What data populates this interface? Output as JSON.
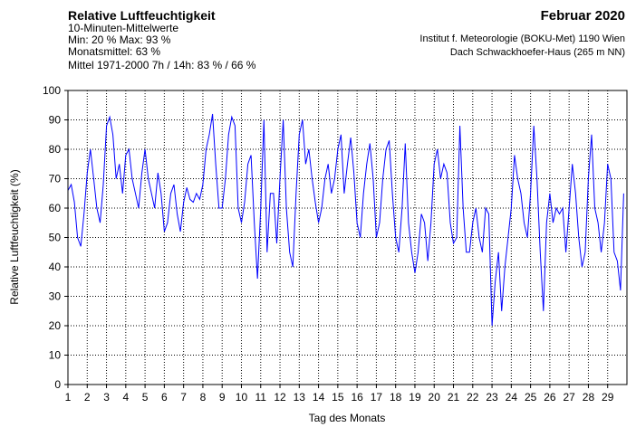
{
  "chart_data": {
    "type": "line",
    "title": "Relative Luftfeuchtigkeit",
    "subtitle": [
      "10-Minuten-Mittelwerte",
      "Min:  20 %   Max:  93 %",
      "Monatsmittel:  63 %",
      "Mittel 1971-2000 7h / 14h:  83 % / 66 %"
    ],
    "title_right": "Februar 2020",
    "subtitle_right": [
      "Institut f. Meteorologie (BOKU-Met) 1190 Wien",
      "Dach Schwackhoefer-Haus (265 m NN)"
    ],
    "xlabel": "Tag des Monats",
    "ylabel": "Relative Luftfeuchtigkeit (%)",
    "xlim": [
      1,
      30
    ],
    "ylim": [
      0,
      100
    ],
    "xticks": [
      1,
      2,
      3,
      4,
      5,
      6,
      7,
      8,
      9,
      10,
      11,
      12,
      13,
      14,
      15,
      16,
      17,
      18,
      19,
      20,
      21,
      22,
      23,
      24,
      25,
      26,
      27,
      28,
      29
    ],
    "yticks": [
      0,
      10,
      20,
      30,
      40,
      50,
      60,
      70,
      80,
      90,
      100
    ],
    "grid": true,
    "x": [
      1,
      1.167,
      1.333,
      1.5,
      1.667,
      1.833,
      2,
      2.167,
      2.333,
      2.5,
      2.667,
      2.833,
      3,
      3.167,
      3.333,
      3.5,
      3.667,
      3.833,
      4,
      4.167,
      4.333,
      4.5,
      4.667,
      4.833,
      5,
      5.167,
      5.333,
      5.5,
      5.667,
      5.833,
      6,
      6.167,
      6.333,
      6.5,
      6.667,
      6.833,
      7,
      7.167,
      7.333,
      7.5,
      7.667,
      7.833,
      8,
      8.167,
      8.333,
      8.5,
      8.667,
      8.833,
      9,
      9.167,
      9.333,
      9.5,
      9.667,
      9.833,
      10,
      10.167,
      10.333,
      10.5,
      10.667,
      10.833,
      11,
      11.167,
      11.333,
      11.5,
      11.667,
      11.833,
      12,
      12.167,
      12.333,
      12.5,
      12.667,
      12.833,
      13,
      13.167,
      13.333,
      13.5,
      13.667,
      13.833,
      14,
      14.167,
      14.333,
      14.5,
      14.667,
      14.833,
      15,
      15.167,
      15.333,
      15.5,
      15.667,
      15.833,
      16,
      16.167,
      16.333,
      16.5,
      16.667,
      16.833,
      17,
      17.167,
      17.333,
      17.5,
      17.667,
      17.833,
      18,
      18.167,
      18.333,
      18.5,
      18.667,
      18.833,
      19,
      19.167,
      19.333,
      19.5,
      19.667,
      19.833,
      20,
      20.167,
      20.333,
      20.5,
      20.667,
      20.833,
      21,
      21.167,
      21.333,
      21.5,
      21.667,
      21.833,
      22,
      22.167,
      22.333,
      22.5,
      22.667,
      22.833,
      23,
      23.167,
      23.333,
      23.5,
      23.667,
      23.833,
      24,
      24.167,
      24.333,
      24.5,
      24.667,
      24.833,
      25,
      25.167,
      25.333,
      25.5,
      25.667,
      25.833,
      26,
      26.167,
      26.333,
      26.5,
      26.667,
      26.833,
      27,
      27.167,
      27.333,
      27.5,
      27.667,
      27.833,
      28,
      28.167,
      28.333,
      28.5,
      28.667,
      28.833,
      29,
      29.167,
      29.333,
      29.5,
      29.667,
      29.833
    ],
    "series": [
      {
        "name": "Relative Luftfeuchtigkeit",
        "color": "#0000ff",
        "values": [
          66,
          68,
          62,
          50,
          47,
          58,
          72,
          80,
          70,
          60,
          55,
          68,
          88,
          91,
          85,
          70,
          75,
          65,
          78,
          80,
          70,
          65,
          60,
          72,
          80,
          70,
          65,
          60,
          72,
          65,
          52,
          55,
          65,
          68,
          58,
          52,
          62,
          67,
          63,
          62,
          65,
          63,
          68,
          80,
          85,
          92,
          75,
          60,
          60,
          70,
          85,
          91,
          88,
          60,
          55,
          62,
          75,
          78,
          55,
          36,
          60,
          90,
          45,
          65,
          65,
          48,
          70,
          90,
          60,
          45,
          40,
          65,
          85,
          90,
          75,
          80,
          70,
          62,
          55,
          60,
          70,
          75,
          65,
          70,
          80,
          85,
          65,
          75,
          84,
          72,
          55,
          50,
          65,
          75,
          82,
          70,
          50,
          55,
          70,
          80,
          83,
          65,
          50,
          45,
          60,
          82,
          55,
          45,
          38,
          45,
          58,
          55,
          42,
          55,
          75,
          80,
          70,
          75,
          72,
          55,
          48,
          50,
          88,
          60,
          45,
          45,
          55,
          60,
          50,
          45,
          60,
          58,
          20,
          35,
          45,
          25,
          40,
          50,
          60,
          78,
          70,
          65,
          55,
          50,
          65,
          88,
          70,
          45,
          25,
          55,
          65,
          55,
          60,
          58,
          60,
          45,
          60,
          75,
          65,
          50,
          40,
          45,
          70,
          85,
          60,
          55,
          45,
          55,
          75,
          70,
          45,
          42,
          32,
          65
        ]
      }
    ]
  }
}
